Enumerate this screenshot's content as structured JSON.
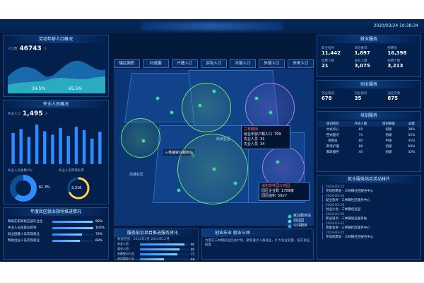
{
  "header": {
    "datetime": "2020/03/24  10:38:34"
  },
  "left": {
    "population": {
      "title": "劳动年龄人口概况",
      "label": "人口数",
      "value": "46743",
      "unit": "人",
      "pct_a": "34.5%",
      "pct_b": "65.5%"
    },
    "unemployed": {
      "title": "失业人员概况",
      "label": "失业人口",
      "value": "1,495",
      "unit": "人",
      "bars": [
        55,
        62,
        48,
        70,
        58,
        52,
        64,
        50,
        66,
        60,
        45,
        57
      ],
      "donut_label": "失业人员总数(%)",
      "donut_value": "61.3%",
      "ring_label": "失业人员率增长率",
      "ring_value": "2,316"
    },
    "graduates": {
      "title": "年度民区就业指导推进情况",
      "rows": [
        {
          "label": "帮助在职高校应届毕业生",
          "pct": "98%",
          "value": 0.98
        },
        {
          "label": "失业人员再就业指导",
          "pct": "100%",
          "value": 1.0
        },
        {
          "label": "就业困难人员实现就业",
          "pct": "73%",
          "value": 0.73
        },
        {
          "label": "帮助创业人员实现就业",
          "pct": "68%",
          "value": 0.68
        }
      ]
    }
  },
  "tabs": [
    "辖区面积",
    "村居委",
    "户籍人口",
    "实有人口",
    "本镇人口",
    "外镇人口",
    "外来人口"
  ],
  "map": {
    "popup1": {
      "title": "三林路街",
      "l1": "就业年龄户籍人口",
      "v1": "709",
      "l2": "失业人员",
      "v2": "31",
      "l3": "失业人员",
      "v3": "34"
    },
    "popup2": {
      "title": "浦东软件园三林园",
      "l1": "园区企业数",
      "v1": "1709家",
      "l2": "园区面积",
      "v2": "50m²"
    },
    "label_center": "三林镇就业服务站",
    "label_a": "前滩社区",
    "label_b": "新城社区",
    "label_c": "前滩社区",
    "label_d": "新城社区",
    "legend1": "就业服务站",
    "legend2": "创业园",
    "legend3": "公共服务"
  },
  "bottom_center": {
    "left_title": "服务前沿项目推进服务资讯",
    "left_sub": "数据范围：2024年1月-2024年12月",
    "bars": [
      {
        "label": "失业人员",
        "value": 90
      },
      {
        "label": "就业人员",
        "value": 80
      },
      {
        "label": "求职登记人员",
        "value": 75
      },
      {
        "label": "灵活就业人员",
        "value": 48
      }
    ],
    "right_title": "创业乐业 就业三林",
    "right_text": "为落实三林镇就业促进计划，聚焦重点人群就业，扩大就业容量，提升就业质量……"
  },
  "right": {
    "service": {
      "title": "就业服务",
      "stats": [
        {
          "lbl": "职业指导",
          "val": "11,442"
        },
        {
          "lbl": "岗位推荐",
          "val": "1,897"
        },
        {
          "lbl": "招聘会",
          "val": "16,398"
        },
        {
          "lbl": "招聘人数",
          "val": "21"
        },
        {
          "lbl": "就业人数",
          "val": "3,075"
        },
        {
          "lbl": "招聘人数",
          "val": "3,213"
        }
      ]
    },
    "startup": {
      "title": "创业服务",
      "stats": [
        {
          "lbl": "创业培训",
          "val": "678"
        },
        {
          "lbl": "创业指导",
          "val": "35"
        },
        {
          "lbl": "创业贷款",
          "val": "875"
        }
      ]
    },
    "training": {
      "title": "培训服务",
      "headers": [
        "培训项目",
        "开班人数",
        "培训等级",
        "进度"
      ],
      "rows": [
        [
          "中式点心",
          "60",
          "初级",
          "38%"
        ],
        [
          "西式面点",
          "74",
          "初级",
          "52%"
        ],
        [
          "育婴员",
          "80",
          "中级",
          "45%"
        ],
        [
          "养老护理",
          "88",
          "初级",
          "60%"
        ],
        [
          "家政服务",
          "40",
          "初级",
          "33%"
        ]
      ]
    },
    "timeline": {
      "title": "就业服务站月活动排片",
      "items": [
        {
          "d": "2024-03-15",
          "t": "专场招聘会 · 三林镇社区服务中心"
        },
        {
          "d": "2024-03-16",
          "t": "就业指导 · 三林镇社区服务中心"
        },
        {
          "d": "2024-03-18",
          "t": "创业沙龙 · 三林镇创业园"
        },
        {
          "d": "2024-03-20",
          "t": "职业培训 · 三林镇就业服务站"
        },
        {
          "d": "2024-03-22",
          "t": "政策宣讲 · 三林镇社区服务中心"
        },
        {
          "d": "2024-03-25",
          "t": "专场招聘会 · 三林镇社区服务中心"
        }
      ]
    }
  }
}
